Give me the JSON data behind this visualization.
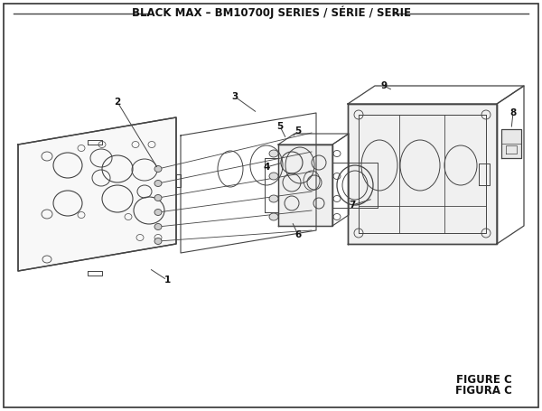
{
  "title": "BLACK MAX – BM10700J SERIES / SÉRIE / SERIE",
  "title_fontsize": 8.5,
  "bg_color": "#ffffff",
  "border_color": "#333333",
  "figure_label": "FIGURE C",
  "figure_sublabel": "FIGURA C",
  "figure_label_fontsize": 8.5,
  "line_color": "#444444",
  "text_color": "#111111",
  "part_fontsize": 7.5
}
